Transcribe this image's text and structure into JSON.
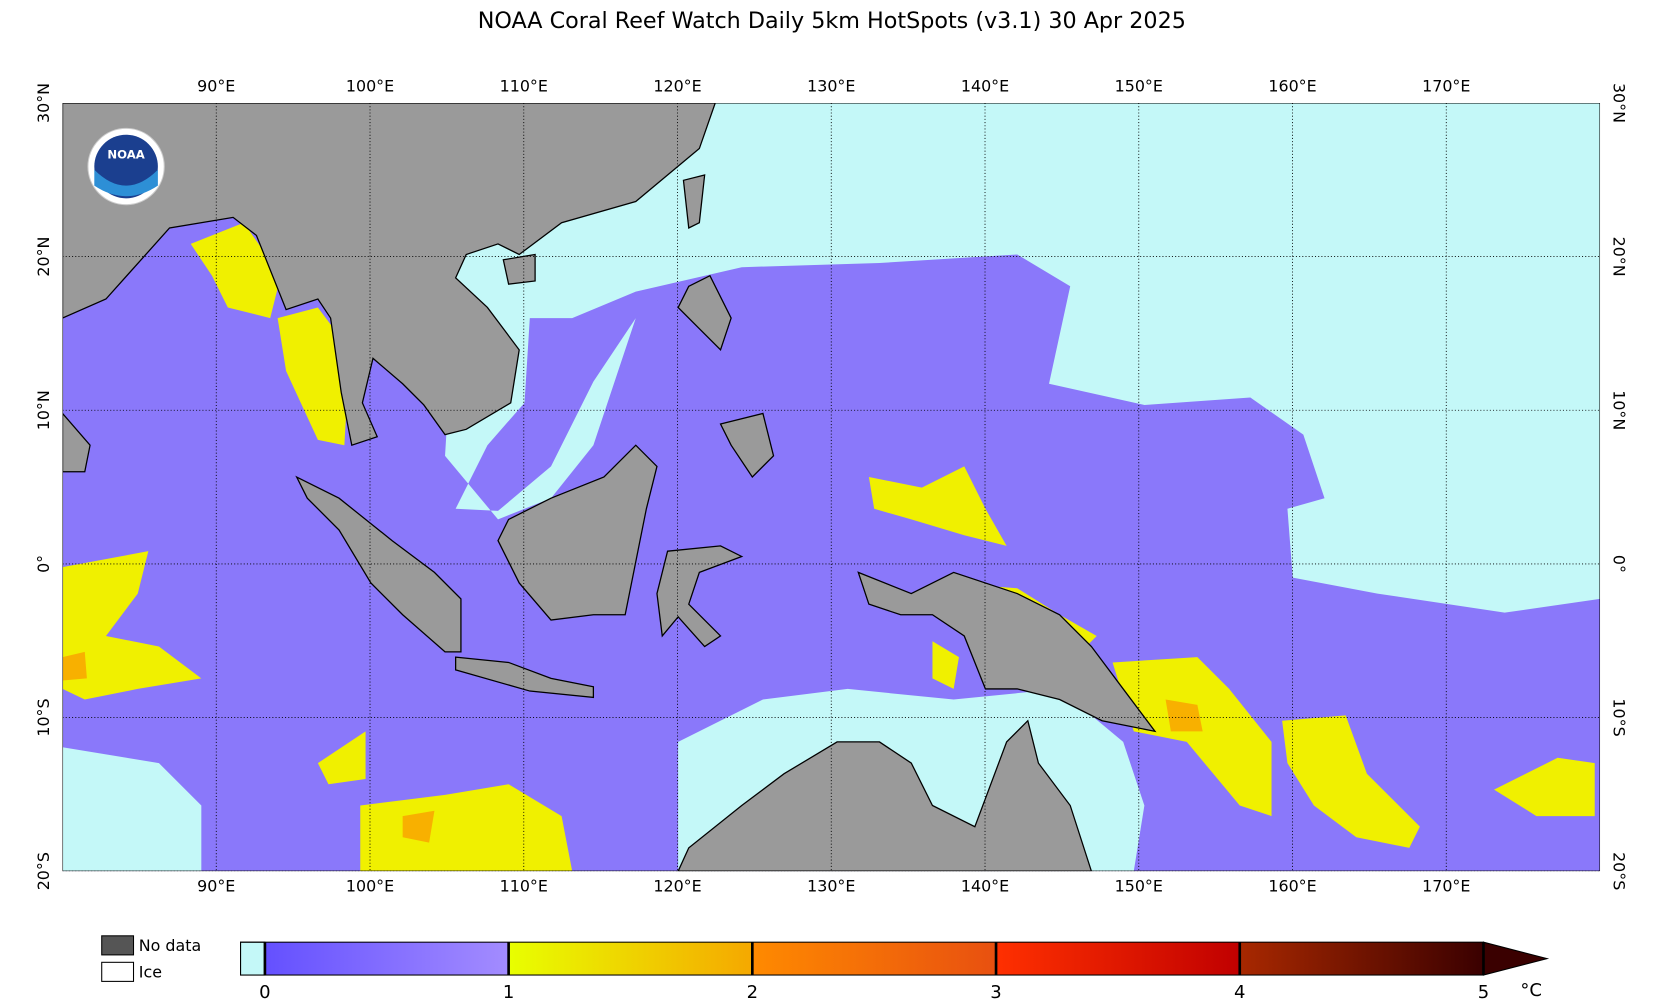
{
  "title": "NOAA Coral Reef Watch Daily 5km HotSpots  (v3.1)   30 Apr 2025",
  "logo": "NOAA",
  "map": {
    "xlim": [
      80,
      180
    ],
    "ylim": [
      -20,
      30
    ],
    "xticks": [
      {
        "value": 90,
        "label": "90°E"
      },
      {
        "value": 100,
        "label": "100°E"
      },
      {
        "value": 110,
        "label": "110°E"
      },
      {
        "value": 120,
        "label": "120°E"
      },
      {
        "value": 130,
        "label": "130°E"
      },
      {
        "value": 140,
        "label": "140°E"
      },
      {
        "value": 150,
        "label": "150°E"
      },
      {
        "value": 160,
        "label": "160°E"
      },
      {
        "value": 170,
        "label": "170°E"
      }
    ],
    "yticks": [
      {
        "value": 30,
        "label": "30°N"
      },
      {
        "value": 20,
        "label": "20°N"
      },
      {
        "value": 10,
        "label": "10°N"
      },
      {
        "value": 0,
        "label": "0°"
      },
      {
        "value": -10,
        "label": "10°S"
      },
      {
        "value": -20,
        "label": "20°S"
      }
    ]
  },
  "legend": {
    "no_data": "No data",
    "ice": "Ice"
  },
  "colorbar": {
    "ticks": [
      0,
      1,
      2,
      3,
      4,
      5
    ],
    "unit": "°C",
    "ice_color": "#c4f8f8",
    "band_colors": [
      [
        "#6450ff",
        "#a38cff"
      ],
      [
        "#e8ff00",
        "#f5a800"
      ],
      [
        "#ff8a00",
        "#e85010"
      ],
      [
        "#ff3000",
        "#c00000"
      ],
      [
        "#a82800",
        "#3a0000"
      ]
    ]
  }
}
